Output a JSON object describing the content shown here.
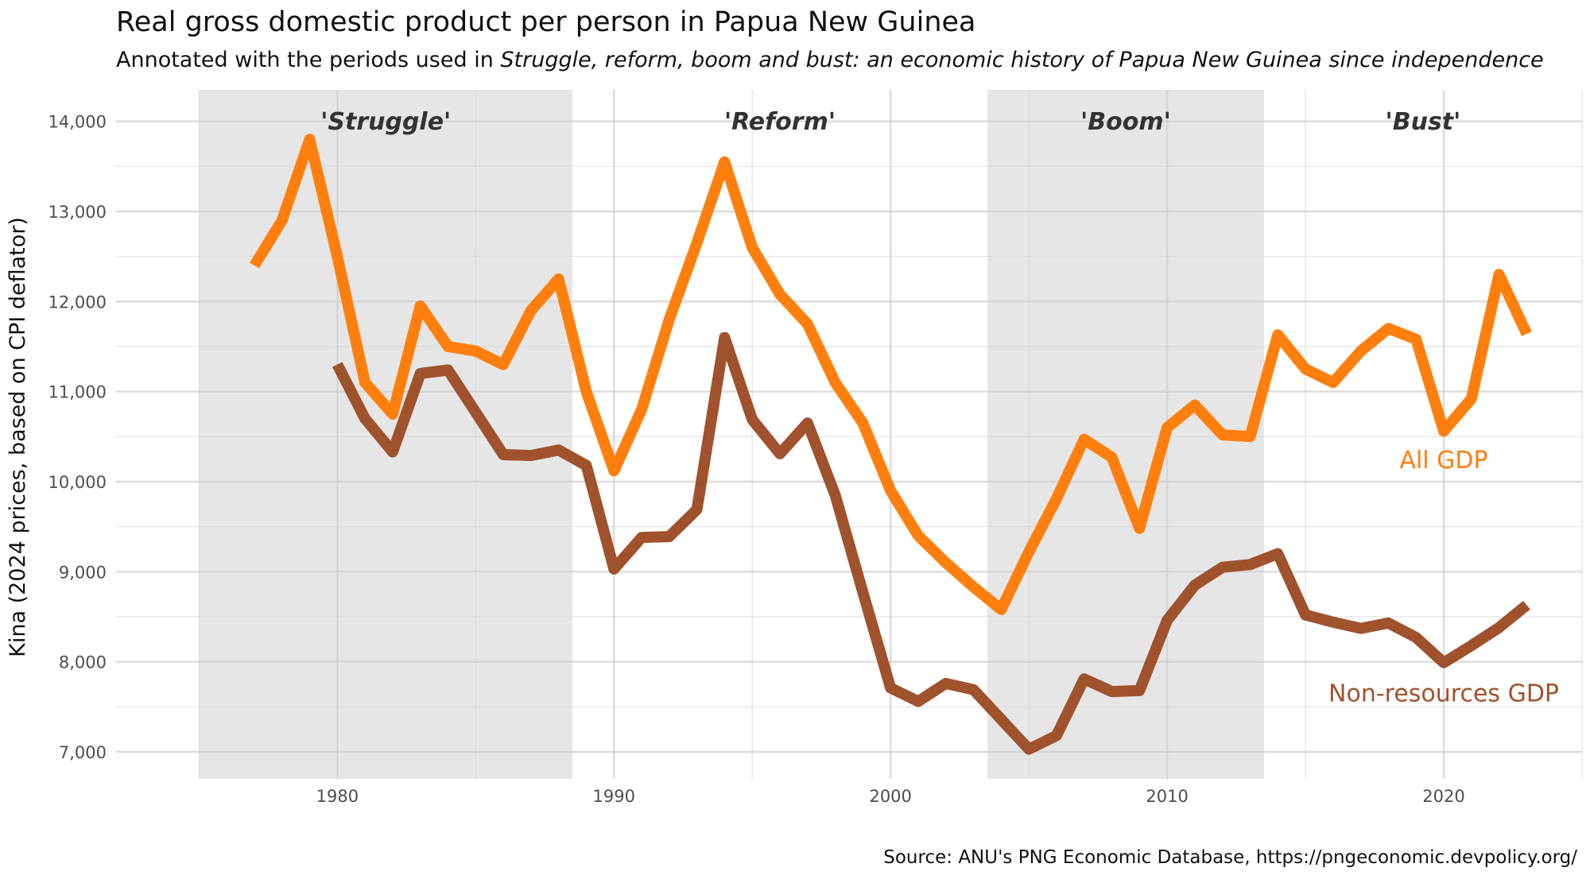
{
  "chart_data": {
    "type": "line",
    "title": "Real gross domestic product per person in Papua New Guinea",
    "subtitle_prefix": "Annotated with the periods used in ",
    "subtitle_italic": "Struggle, reform, boom and bust: an economic history of Papua New Guinea since independence",
    "ylabel": "Kina (2024 prices, based on CPI deflator)",
    "xlabel": "",
    "caption": "Source: ANU's PNG Economic Database, https://pngeconomic.devpolicy.org/",
    "xlim": [
      1972,
      2025
    ],
    "ylim": [
      6700,
      14350
    ],
    "x_ticks": [
      1980,
      1990,
      2000,
      2010,
      2020
    ],
    "x_tick_labels": [
      "1980",
      "1990",
      "2000",
      "2010",
      "2020"
    ],
    "y_ticks": [
      7000,
      8000,
      9000,
      10000,
      11000,
      12000,
      13000,
      14000
    ],
    "y_tick_labels": [
      "7,000",
      "8,000",
      "9,000",
      "10,000",
      "11,000",
      "12,000",
      "13,000",
      "14,000"
    ],
    "periods": [
      {
        "label": "'Struggle'",
        "start": 1975,
        "end": 1988.5,
        "shaded": true
      },
      {
        "label": "'Reform'",
        "start": 1988.5,
        "end": 2003.5,
        "shaded": false
      },
      {
        "label": "'Boom'",
        "start": 2003.5,
        "end": 2013.5,
        "shaded": true
      },
      {
        "label": "'Bust'",
        "start": 2013.5,
        "end": 2025,
        "shaded": false
      }
    ],
    "series": [
      {
        "name": "All GDP",
        "color": "#FF7F0E",
        "x": [
          1977,
          1978,
          1979,
          1980,
          1981,
          1982,
          1983,
          1984,
          1985,
          1986,
          1987,
          1988,
          1989,
          1990,
          1991,
          1992,
          1993,
          1994,
          1995,
          1996,
          1997,
          1998,
          1999,
          2000,
          2001,
          2002,
          2003,
          2004,
          2005,
          2006,
          2007,
          2008,
          2009,
          2010,
          2011,
          2012,
          2013,
          2014,
          2015,
          2016,
          2017,
          2018,
          2019,
          2020,
          2021,
          2022,
          2023
        ],
        "values": [
          12400,
          12900,
          13800,
          12500,
          11100,
          10750,
          11950,
          11500,
          11450,
          11300,
          11900,
          12250,
          11000,
          10120,
          10800,
          11800,
          12650,
          13550,
          12600,
          12080,
          11750,
          11100,
          10650,
          9900,
          9400,
          9100,
          8830,
          8580,
          9220,
          9810,
          10470,
          10270,
          9480,
          10600,
          10850,
          10520,
          10500,
          11630,
          11250,
          11100,
          11450,
          11700,
          11580,
          10560,
          10920,
          12300,
          11640
        ]
      },
      {
        "name": "Non-resources GDP",
        "color": "#A0522D",
        "x": [
          1980,
          1981,
          1982,
          1983,
          1984,
          1985,
          1986,
          1987,
          1988,
          1989,
          1990,
          1991,
          1992,
          1993,
          1994,
          1995,
          1996,
          1997,
          1998,
          1999,
          2000,
          2001,
          2002,
          2003,
          2004,
          2005,
          2006,
          2007,
          2008,
          2009,
          2010,
          2011,
          2012,
          2013,
          2014,
          2015,
          2016,
          2017,
          2018,
          2019,
          2020,
          2021,
          2022,
          2023
        ],
        "values": [
          11300,
          10700,
          10330,
          11200,
          11240,
          10770,
          10300,
          10290,
          10350,
          10180,
          9030,
          9380,
          9390,
          9690,
          11600,
          10690,
          10310,
          10650,
          9850,
          8770,
          7710,
          7560,
          7760,
          7690,
          7360,
          7030,
          7180,
          7810,
          7670,
          7680,
          8460,
          8850,
          9050,
          9080,
          9200,
          8520,
          8440,
          8370,
          8430,
          8270,
          7990,
          8180,
          8380,
          8630
        ]
      }
    ],
    "series_labels": [
      {
        "text": "All GDP",
        "x": 2020,
        "y": 10150,
        "color": "#FF7F0E"
      },
      {
        "text": "Non-resources GDP",
        "x": 2020,
        "y": 7560,
        "color": "#A0522D"
      }
    ]
  }
}
